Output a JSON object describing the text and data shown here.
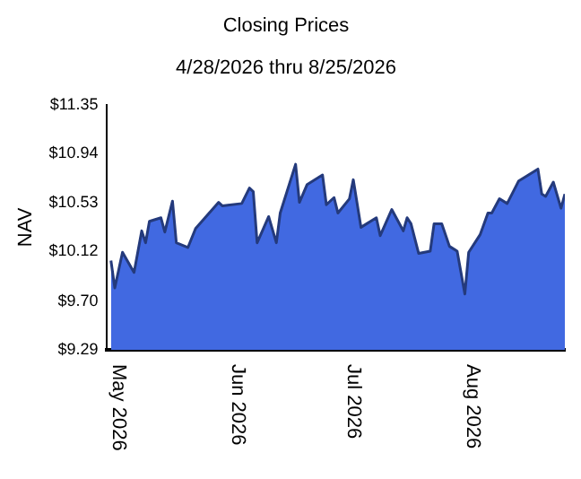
{
  "chart_data": {
    "type": "area",
    "title": "Closing Prices",
    "subtitle": "4/28/2026 thru 8/25/2026",
    "ylabel": "NAV",
    "x": [
      "2026-04-29",
      "2026-04-30",
      "2026-05-02",
      "2026-05-05",
      "2026-05-07",
      "2026-05-08",
      "2026-05-09",
      "2026-05-12",
      "2026-05-13",
      "2026-05-15",
      "2026-05-16",
      "2026-05-19",
      "2026-05-21",
      "2026-05-27",
      "2026-05-28",
      "2026-06-02",
      "2026-06-04",
      "2026-06-05",
      "2026-06-06",
      "2026-06-09",
      "2026-06-11",
      "2026-06-12",
      "2026-06-16",
      "2026-06-17",
      "2026-06-19",
      "2026-06-23",
      "2026-06-24",
      "2026-06-26",
      "2026-06-27",
      "2026-06-30",
      "2026-07-01",
      "2026-07-03",
      "2026-07-07",
      "2026-07-08",
      "2026-07-11",
      "2026-07-14",
      "2026-07-15",
      "2026-07-16",
      "2026-07-18",
      "2026-07-21",
      "2026-07-22",
      "2026-07-24",
      "2026-07-26",
      "2026-07-28",
      "2026-07-30",
      "2026-07-31",
      "2026-08-03",
      "2026-08-05",
      "2026-08-06",
      "2026-08-08",
      "2026-08-10",
      "2026-08-13",
      "2026-08-18",
      "2026-08-19",
      "2026-08-20",
      "2026-08-22",
      "2026-08-24",
      "2026-08-25"
    ],
    "series": [
      {
        "color": "#4169e1",
        "values": [
          10.04,
          9.81,
          10.11,
          9.94,
          10.29,
          10.19,
          10.37,
          10.4,
          10.28,
          10.54,
          10.19,
          10.15,
          10.31,
          10.53,
          10.5,
          10.52,
          10.65,
          10.62,
          10.19,
          10.41,
          10.19,
          10.44,
          10.85,
          10.53,
          10.68,
          10.76,
          10.51,
          10.57,
          10.44,
          10.56,
          10.72,
          10.32,
          10.4,
          10.25,
          10.47,
          10.29,
          10.4,
          10.35,
          10.1,
          10.12,
          10.35,
          10.35,
          10.16,
          10.12,
          9.76,
          10.11,
          10.26,
          10.44,
          10.44,
          10.56,
          10.52,
          10.71,
          10.81,
          10.6,
          10.58,
          10.7,
          10.48,
          10.6
        ]
      }
    ],
    "xlim": [
      "2026-04-28",
      "2026-08-25"
    ],
    "xticks": [
      {
        "value": "2026-05-01",
        "label": "May 2026"
      },
      {
        "value": "2026-06-01",
        "label": "Jun 2026"
      },
      {
        "value": "2026-07-01",
        "label": "Jul 2026"
      },
      {
        "value": "2026-08-01",
        "label": "Aug 2026"
      }
    ],
    "ylim": [
      9.29,
      11.35
    ],
    "yticks": [
      {
        "value": 9.29,
        "label": "$9.29"
      },
      {
        "value": 9.7,
        "label": "$9.70"
      },
      {
        "value": 10.12,
        "label": "$10.12"
      },
      {
        "value": 10.53,
        "label": "$10.53"
      },
      {
        "value": 10.94,
        "label": "$10.94"
      },
      {
        "value": 11.35,
        "label": "$11.35"
      }
    ],
    "grid": false,
    "legend": false,
    "marker": "none",
    "line_style": "solid"
  }
}
